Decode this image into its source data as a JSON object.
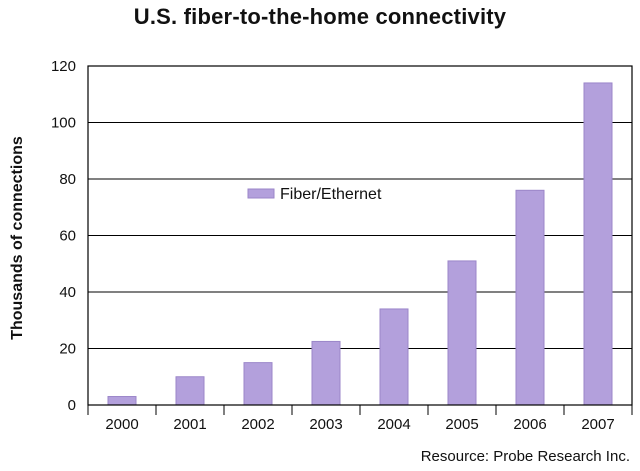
{
  "chart_data": {
    "type": "bar",
    "title": "U.S. fiber-to-the-home connectivity",
    "xlabel": "",
    "ylabel": "Thousands of connections",
    "categories": [
      "2000",
      "2001",
      "2002",
      "2003",
      "2004",
      "2005",
      "2006",
      "2007"
    ],
    "series": [
      {
        "name": "Fiber/Ethernet",
        "values": [
          3,
          10,
          15,
          22.5,
          34,
          51,
          76,
          114
        ]
      }
    ],
    "ylim": [
      0,
      120
    ],
    "yticks": [
      0,
      20,
      40,
      60,
      80,
      100,
      120
    ],
    "grid": true,
    "legend": "center-left",
    "colors": {
      "bar": "#b3a0dc",
      "bar_edge": "#9b86c9",
      "grid": "#000000"
    }
  },
  "source": "Resource: Probe Research Inc."
}
